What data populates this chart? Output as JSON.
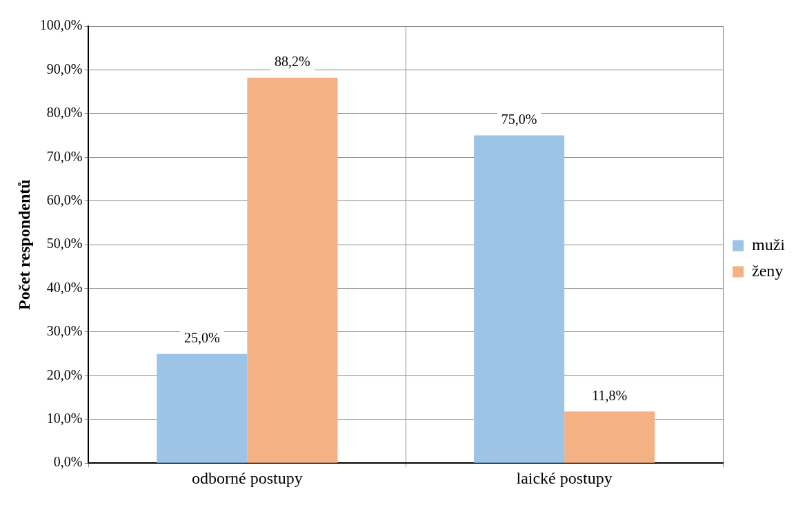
{
  "chart_data": {
    "type": "bar",
    "ylabel": "Počet respondentů",
    "categories": [
      "odborné postupy",
      "laické postupy"
    ],
    "series": [
      {
        "name": "muži",
        "color": "#9dc3e6",
        "values": [
          25.0,
          75.0
        ]
      },
      {
        "name": "ženy",
        "color": "#f4b183",
        "values": [
          88.2,
          11.8
        ]
      }
    ],
    "value_labels": [
      [
        "25,0%",
        "75,0%"
      ],
      [
        "88,2%",
        "11,8%"
      ]
    ],
    "ylim": [
      0,
      100
    ],
    "yticks": [
      {
        "value": 0,
        "label": "0,0%"
      },
      {
        "value": 10,
        "label": "10,0%"
      },
      {
        "value": 20,
        "label": "20,0%"
      },
      {
        "value": 30,
        "label": "30,0%"
      },
      {
        "value": 40,
        "label": "40,0%"
      },
      {
        "value": 50,
        "label": "50,0%"
      },
      {
        "value": 60,
        "label": "60,0%"
      },
      {
        "value": 70,
        "label": "70,0%"
      },
      {
        "value": 80,
        "label": "80,0%"
      },
      {
        "value": 90,
        "label": "90,0%"
      },
      {
        "value": 100,
        "label": "100,0%"
      }
    ],
    "grid": true,
    "legend": "right"
  }
}
